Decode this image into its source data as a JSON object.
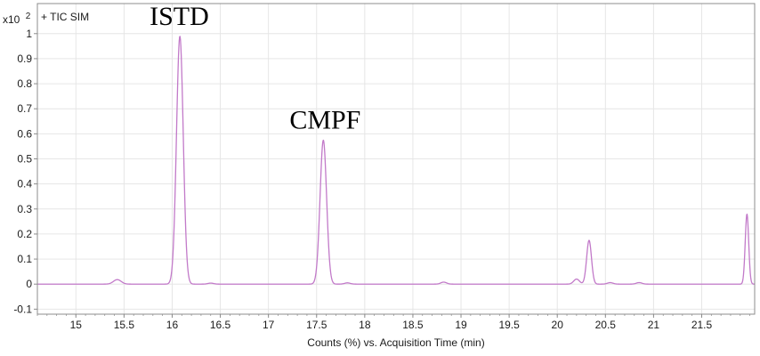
{
  "chart": {
    "multiplier_label": "x10",
    "multiplier_exponent": "2",
    "trace_label": "+ TIC SIM",
    "xlabel": "Counts (%) vs. Acquisition Time (min)",
    "colors": {
      "trace": "#c27ac9",
      "grid": "#e6e6e6",
      "frame": "#8c8c8c",
      "background": "#ffffff"
    }
  },
  "chart_data": {
    "type": "line",
    "xlim": [
      14.6,
      22.05
    ],
    "ylim": [
      -0.12,
      1.12
    ],
    "xticks": [
      "15",
      "15.5",
      "16",
      "16.5",
      "17",
      "17.5",
      "18",
      "18.5",
      "19",
      "19.5",
      "20",
      "20.5",
      "21",
      "21.5"
    ],
    "xtick_values": [
      15,
      15.5,
      16,
      16.5,
      17,
      17.5,
      18,
      18.5,
      19,
      19.5,
      20,
      20.5,
      21,
      21.5
    ],
    "yticks": [
      "-0.1",
      "0",
      "0.1",
      "0.2",
      "0.3",
      "0.4",
      "0.5",
      "0.6",
      "0.7",
      "0.8",
      "0.9",
      "1"
    ],
    "ytick_values": [
      -0.1,
      0,
      0.1,
      0.2,
      0.3,
      0.4,
      0.5,
      0.6,
      0.7,
      0.8,
      0.9,
      1
    ],
    "grid": true,
    "series": [
      {
        "peaks": [
          {
            "center": 15.43,
            "height": 0.018,
            "width": 0.04
          },
          {
            "center": 16.08,
            "height": 0.99,
            "width": 0.035
          },
          {
            "center": 16.4,
            "height": 0.004,
            "width": 0.03
          },
          {
            "center": 17.57,
            "height": 0.575,
            "width": 0.034
          },
          {
            "center": 17.82,
            "height": 0.005,
            "width": 0.03
          },
          {
            "center": 18.82,
            "height": 0.008,
            "width": 0.03
          },
          {
            "center": 20.2,
            "height": 0.02,
            "width": 0.03
          },
          {
            "center": 20.33,
            "height": 0.175,
            "width": 0.025
          },
          {
            "center": 20.55,
            "height": 0.006,
            "width": 0.03
          },
          {
            "center": 20.85,
            "height": 0.006,
            "width": 0.03
          },
          {
            "center": 21.97,
            "height": 0.28,
            "width": 0.018
          }
        ]
      }
    ],
    "annotations": [
      {
        "text": "ISTD",
        "x": 16.08,
        "y": 1.0
      },
      {
        "text": "CMPF",
        "x": 17.57,
        "y": 0.585
      }
    ]
  }
}
